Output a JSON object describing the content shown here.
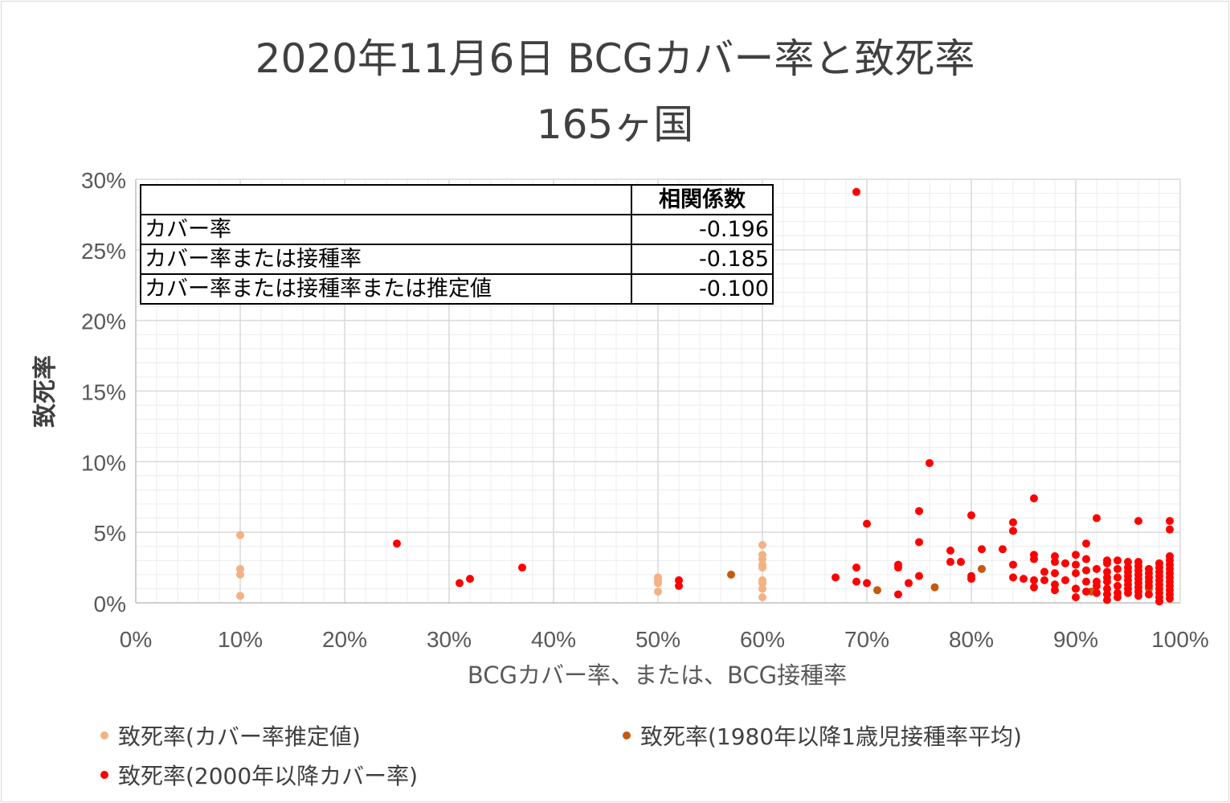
{
  "title": "2020年11月6日 BCGカバー率と致死率",
  "subtitle": "165ヶ国",
  "table": {
    "header": "相関係数",
    "rows": [
      {
        "label": "カバー率",
        "value": "-0.196"
      },
      {
        "label": "カバー率または接種率",
        "value": "-0.185"
      },
      {
        "label": "カバー率または接種率または推定値",
        "value": "-0.100"
      }
    ]
  },
  "colors": {
    "estimated": "#f4b183",
    "since1980": "#c55a11",
    "since2000": "#ff0000",
    "gridMajor": "#d9d9d9",
    "gridMinor": "#ececec",
    "text": "#595959"
  },
  "legend": [
    {
      "label": "致死率(カバー率推定値)",
      "series": "estimated"
    },
    {
      "label": "致死率(1980年以降1歳児接種率平均)",
      "series": "since1980"
    },
    {
      "label": "致死率(2000年以降カバー率)",
      "series": "since2000"
    }
  ],
  "chart_data": {
    "type": "scatter",
    "title": "2020年11月6日 BCGカバー率と致死率 165ヶ国",
    "xlabel": "BCGカバー率、または、BCG接種率",
    "ylabel": "致死率",
    "xlim": [
      0,
      1
    ],
    "ylim": [
      0,
      0.3
    ],
    "xticks": [
      "0%",
      "10%",
      "20%",
      "30%",
      "40%",
      "50%",
      "60%",
      "70%",
      "80%",
      "90%",
      "100%"
    ],
    "yticks": [
      "0%",
      "5%",
      "10%",
      "15%",
      "20%",
      "25%",
      "30%"
    ],
    "grid": true,
    "legend_position": "bottom",
    "series": [
      {
        "name": "致死率(カバー率推定値)",
        "key": "estimated",
        "points": [
          [
            0.1,
            0.048
          ],
          [
            0.1,
            0.024
          ],
          [
            0.1,
            0.02
          ],
          [
            0.1,
            0.005
          ],
          [
            0.5,
            0.018
          ],
          [
            0.5,
            0.016
          ],
          [
            0.5,
            0.014
          ],
          [
            0.5,
            0.008
          ],
          [
            0.6,
            0.041
          ],
          [
            0.6,
            0.034
          ],
          [
            0.6,
            0.031
          ],
          [
            0.6,
            0.027
          ],
          [
            0.6,
            0.025
          ],
          [
            0.6,
            0.016
          ],
          [
            0.6,
            0.014
          ],
          [
            0.6,
            0.01
          ],
          [
            0.6,
            0.004
          ]
        ]
      },
      {
        "name": "致死率(1980年以降1歳児接種率平均)",
        "key": "since1980",
        "points": [
          [
            0.57,
            0.02
          ],
          [
            0.71,
            0.009
          ],
          [
            0.765,
            0.011
          ],
          [
            0.81,
            0.024
          ],
          [
            0.9,
            0.01
          ],
          [
            0.915,
            0.008
          ],
          [
            0.97,
            0.01
          ]
        ]
      },
      {
        "name": "致死率(2000年以降カバー率)",
        "key": "since2000",
        "points": [
          [
            0.25,
            0.042
          ],
          [
            0.31,
            0.014
          ],
          [
            0.32,
            0.017
          ],
          [
            0.37,
            0.025
          ],
          [
            0.52,
            0.016
          ],
          [
            0.52,
            0.012
          ],
          [
            0.67,
            0.018
          ],
          [
            0.69,
            0.291
          ],
          [
            0.69,
            0.025
          ],
          [
            0.69,
            0.015
          ],
          [
            0.7,
            0.056
          ],
          [
            0.7,
            0.014
          ],
          [
            0.73,
            0.027
          ],
          [
            0.73,
            0.025
          ],
          [
            0.73,
            0.006
          ],
          [
            0.74,
            0.014
          ],
          [
            0.75,
            0.065
          ],
          [
            0.75,
            0.043
          ],
          [
            0.75,
            0.019
          ],
          [
            0.76,
            0.099
          ],
          [
            0.78,
            0.037
          ],
          [
            0.78,
            0.029
          ],
          [
            0.79,
            0.029
          ],
          [
            0.8,
            0.062
          ],
          [
            0.8,
            0.019
          ],
          [
            0.8,
            0.017
          ],
          [
            0.81,
            0.038
          ],
          [
            0.83,
            0.038
          ],
          [
            0.84,
            0.057
          ],
          [
            0.84,
            0.051
          ],
          [
            0.84,
            0.027
          ],
          [
            0.84,
            0.018
          ],
          [
            0.85,
            0.017
          ],
          [
            0.86,
            0.074
          ],
          [
            0.86,
            0.034
          ],
          [
            0.86,
            0.031
          ],
          [
            0.86,
            0.016
          ],
          [
            0.86,
            0.011
          ],
          [
            0.87,
            0.022
          ],
          [
            0.87,
            0.016
          ],
          [
            0.88,
            0.033
          ],
          [
            0.88,
            0.029
          ],
          [
            0.88,
            0.021
          ],
          [
            0.88,
            0.013
          ],
          [
            0.88,
            0.009
          ],
          [
            0.89,
            0.028
          ],
          [
            0.89,
            0.016
          ],
          [
            0.9,
            0.034
          ],
          [
            0.9,
            0.027
          ],
          [
            0.9,
            0.021
          ],
          [
            0.9,
            0.01
          ],
          [
            0.9,
            0.004
          ],
          [
            0.91,
            0.042
          ],
          [
            0.91,
            0.031
          ],
          [
            0.91,
            0.023
          ],
          [
            0.91,
            0.015
          ],
          [
            0.91,
            0.008
          ],
          [
            0.92,
            0.06
          ],
          [
            0.92,
            0.024
          ],
          [
            0.92,
            0.015
          ],
          [
            0.92,
            0.012
          ],
          [
            0.92,
            0.007
          ],
          [
            0.93,
            0.03
          ],
          [
            0.93,
            0.028
          ],
          [
            0.93,
            0.022
          ],
          [
            0.93,
            0.018
          ],
          [
            0.93,
            0.015
          ],
          [
            0.93,
            0.01
          ],
          [
            0.93,
            0.006
          ],
          [
            0.93,
            0.002
          ],
          [
            0.94,
            0.03
          ],
          [
            0.94,
            0.024
          ],
          [
            0.94,
            0.018
          ],
          [
            0.94,
            0.012
          ],
          [
            0.94,
            0.007
          ],
          [
            0.94,
            0.004
          ],
          [
            0.95,
            0.029
          ],
          [
            0.95,
            0.025
          ],
          [
            0.95,
            0.022
          ],
          [
            0.95,
            0.019
          ],
          [
            0.95,
            0.016
          ],
          [
            0.95,
            0.013
          ],
          [
            0.95,
            0.01
          ],
          [
            0.95,
            0.007
          ],
          [
            0.96,
            0.058
          ],
          [
            0.96,
            0.029
          ],
          [
            0.96,
            0.026
          ],
          [
            0.96,
            0.023
          ],
          [
            0.96,
            0.02
          ],
          [
            0.96,
            0.017
          ],
          [
            0.96,
            0.014
          ],
          [
            0.96,
            0.011
          ],
          [
            0.96,
            0.008
          ],
          [
            0.96,
            0.005
          ],
          [
            0.97,
            0.024
          ],
          [
            0.97,
            0.021
          ],
          [
            0.97,
            0.018
          ],
          [
            0.97,
            0.015
          ],
          [
            0.97,
            0.012
          ],
          [
            0.97,
            0.006
          ],
          [
            0.98,
            0.028
          ],
          [
            0.98,
            0.025
          ],
          [
            0.98,
            0.022
          ],
          [
            0.98,
            0.019
          ],
          [
            0.98,
            0.016
          ],
          [
            0.98,
            0.013
          ],
          [
            0.98,
            0.01
          ],
          [
            0.98,
            0.007
          ],
          [
            0.98,
            0.004
          ],
          [
            0.98,
            0.001
          ],
          [
            0.99,
            0.058
          ],
          [
            0.99,
            0.052
          ],
          [
            0.99,
            0.033
          ],
          [
            0.99,
            0.03
          ],
          [
            0.99,
            0.027
          ],
          [
            0.99,
            0.024
          ],
          [
            0.99,
            0.021
          ],
          [
            0.99,
            0.018
          ],
          [
            0.99,
            0.015
          ],
          [
            0.99,
            0.012
          ],
          [
            0.99,
            0.009
          ],
          [
            0.99,
            0.006
          ],
          [
            0.99,
            0.003
          ]
        ]
      }
    ]
  }
}
